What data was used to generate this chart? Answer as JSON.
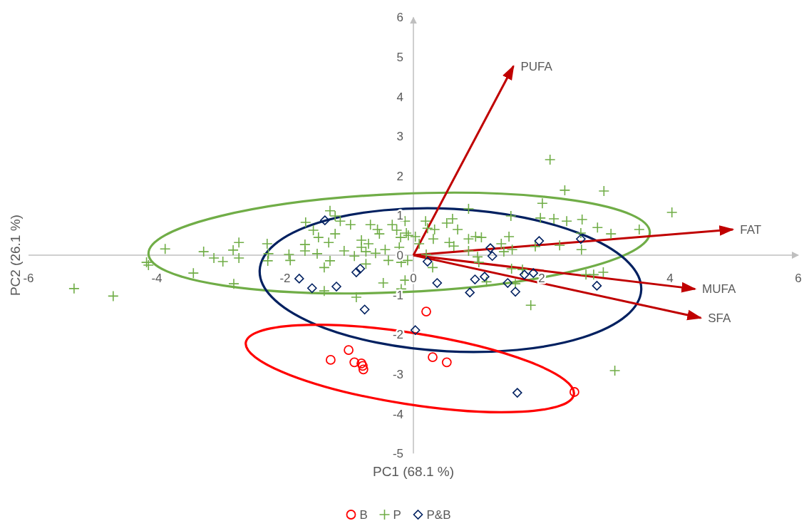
{
  "chart_data": {
    "type": "scatter",
    "xlabel": "PC1 (68.1 %)",
    "ylabel": "PC2 (26.1 %)",
    "xlim": [
      -6,
      6
    ],
    "ylim": [
      -5,
      6
    ],
    "xticks": [
      -6,
      -4,
      -2,
      0,
      2,
      4,
      6
    ],
    "yticks": [
      -5,
      -4,
      -3,
      -2,
      -1,
      0,
      1,
      2,
      3,
      4,
      5,
      6
    ],
    "legend": "bottom",
    "series": [
      {
        "name": "B",
        "color": "#ff0000",
        "marker": "circle",
        "x": [
          0.2,
          -1.29,
          -1.01,
          -0.92,
          -0.81,
          -0.79,
          -0.78,
          0.3,
          0.52,
          2.51
        ],
        "values": [
          -1.42,
          -2.64,
          -2.39,
          -2.7,
          -2.73,
          -2.79,
          -2.88,
          -2.57,
          -2.7,
          -3.45
        ]
      },
      {
        "name": "P",
        "color": "#70ad47",
        "marker": "cross",
        "x": [
          -5.29,
          -4.68,
          -4.16,
          -4.13,
          -3.87,
          -3.27,
          -3.11,
          -2.97,
          -3.43,
          -2.8,
          -2.72,
          -2.81,
          -2.72,
          -2.28,
          -2.26,
          -2.27,
          -1.94,
          -1.3,
          -1.22,
          -1.14,
          -1.68,
          -1.56,
          -1.48,
          -1.32,
          -1.22,
          -1.69,
          -1.69,
          -1.5,
          -1.92,
          -1.3,
          -1.39,
          -1.39,
          -0.98,
          -1.08,
          -0.92,
          -0.81,
          -0.81,
          -0.7,
          -0.74,
          -0.74,
          -0.67,
          -0.56,
          -0.53,
          -0.59,
          -0.44,
          -0.39,
          -0.33,
          -0.26,
          -0.2,
          -0.22,
          -0.13,
          -0.11,
          -0.08,
          -0.19,
          -0.09,
          -0.13,
          -0.47,
          -0.19,
          -0.89,
          0.03,
          0.09,
          0.19,
          0.22,
          0.33,
          0.31,
          0.2,
          0.3,
          0.52,
          0.61,
          0.69,
          0.56,
          0.63,
          0.86,
          0.86,
          0.97,
          1.06,
          0.86,
          1.0,
          1.02,
          1.14,
          2.13,
          2.36,
          2.97,
          4.03,
          2.01,
          1.52,
          1.98,
          2.19,
          2.39,
          2.63,
          2.87,
          3.08,
          3.52,
          1.49,
          1.37,
          1.54,
          1.41,
          2.28,
          2.61,
          2.62,
          1.9,
          1.53,
          1.7,
          2.69,
          2.81,
          2.96,
          1.59,
          1.83,
          3.14
        ],
        "values": [
          -0.84,
          -1.03,
          -0.18,
          -0.25,
          0.16,
          0.09,
          -0.07,
          -0.16,
          -0.45,
          -0.72,
          0.32,
          0.13,
          -0.07,
          0.29,
          0.04,
          -0.14,
          0.02,
          1.12,
          0.99,
          0.86,
          0.83,
          0.63,
          0.45,
          0.32,
          0.54,
          0.27,
          0.11,
          0.04,
          -0.13,
          -0.14,
          -0.31,
          -0.9,
          0.77,
          0.11,
          -0.02,
          0.38,
          0.2,
          0.29,
          0.09,
          -0.22,
          0.77,
          0.65,
          0.54,
          0.05,
          0.14,
          -0.13,
          0.77,
          0.63,
          0.45,
          0.2,
          0.86,
          0.56,
          0.5,
          -0.18,
          -0.13,
          -0.63,
          -0.7,
          -0.85,
          -1.06,
          0.47,
          0.29,
          0.86,
          0.68,
          0.65,
          0.41,
          0.02,
          -0.31,
          0.81,
          0.92,
          0.65,
          0.32,
          0.23,
          1.17,
          0.41,
          0.47,
          0.45,
          0.11,
          -0.04,
          -0.18,
          -0.67,
          2.41,
          1.64,
          1.62,
          1.08,
          1.31,
          0.99,
          0.94,
          0.92,
          0.86,
          0.9,
          0.7,
          0.54,
          0.65,
          0.47,
          0.29,
          0.14,
          0.09,
          0.25,
          0.56,
          0.14,
          0.22,
          -0.34,
          -0.36,
          -0.49,
          -0.49,
          -0.43,
          -0.72,
          -1.26,
          -2.91
        ]
      },
      {
        "name": "P&B",
        "color": "#002060",
        "marker": "diamond",
        "x": [
          -1.38,
          -1.78,
          -1.58,
          -1.2,
          -0.89,
          -0.83,
          -0.76,
          0.22,
          0.37,
          0.88,
          0.96,
          1.11,
          1.2,
          1.23,
          1.96,
          2.61,
          1.47,
          1.59,
          1.73,
          1.87,
          2.86,
          0.03,
          1.62
        ],
        "values": [
          0.88,
          -0.59,
          -0.83,
          -0.79,
          -0.43,
          -0.34,
          -1.37,
          -0.16,
          -0.7,
          -0.94,
          -0.61,
          -0.54,
          0.18,
          -0.02,
          0.36,
          0.41,
          -0.7,
          -0.92,
          -0.49,
          -0.45,
          -0.77,
          -1.89,
          -3.47
        ]
      },
      {
        "type": "line",
        "name": "PUFA",
        "color": "#c00000",
        "x": [
          0,
          1.56
        ],
        "values": [
          0,
          4.77
        ]
      },
      {
        "type": "line",
        "name": "FAT",
        "color": "#c00000",
        "x": [
          0,
          4.98
        ],
        "values": [
          0,
          0.65
        ]
      },
      {
        "type": "line",
        "name": "MUFA",
        "color": "#c00000",
        "x": [
          0,
          4.39
        ],
        "values": [
          0,
          -0.85
        ]
      },
      {
        "type": "line",
        "name": "SFA",
        "color": "#c00000",
        "x": [
          0,
          4.48
        ],
        "values": [
          0,
          -1.58
        ]
      }
    ]
  }
}
